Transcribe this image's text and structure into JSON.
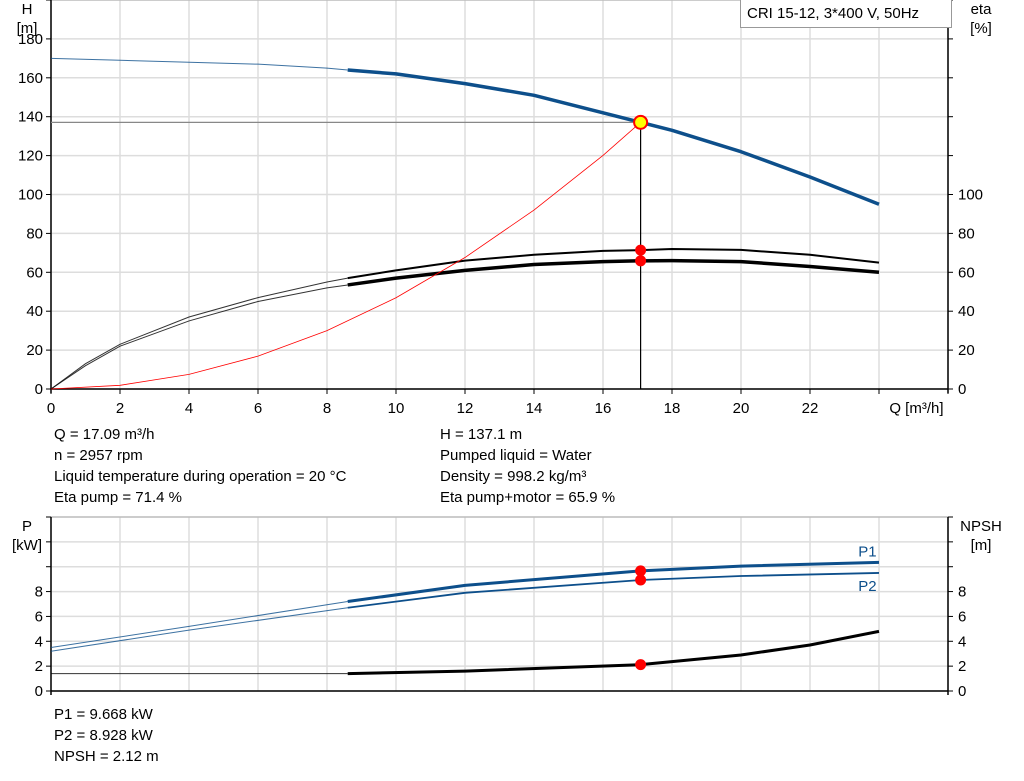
{
  "legend_box": "CRI 15-12, 3*400 V, 50Hz",
  "info_top_left": [
    "Q = 17.09 m³/h",
    "n = 2957 rpm",
    "Liquid temperature during operation = 20 °C",
    "Eta pump = 71.4 %"
  ],
  "info_top_right": [
    "H = 137.1 m",
    "Pumped liquid = Water",
    "Density = 998.2 kg/m³",
    "Eta pump+motor = 65.9 %"
  ],
  "info_bottom": [
    "P1 = 9.668 kW",
    "P2 = 8.928 kW",
    "NPSH = 2.12 m"
  ],
  "colors": {
    "blue": "#0d4f8b",
    "black": "#000000",
    "red": "#ff0000",
    "operating_point": "#ffff00"
  },
  "chart_data": [
    {
      "type": "line",
      "xlabel": "Q [m³/h]",
      "ylabel": "H\n[m]",
      "y2label": "eta\n[%]",
      "ylabel_lines": [
        "H",
        "[m]"
      ],
      "y2label_lines": [
        "eta",
        "[%]"
      ],
      "xlim": [
        0,
        26
      ],
      "ylim": [
        0,
        200
      ],
      "grid": true,
      "xticks": [
        0,
        2,
        4,
        6,
        8,
        10,
        12,
        14,
        16,
        18,
        20,
        22
      ],
      "yticks": [
        0,
        20,
        40,
        60,
        80,
        100,
        120,
        140,
        160,
        180
      ],
      "y2ticks": [
        0,
        20,
        40,
        60,
        80,
        100
      ],
      "duty_point": {
        "Q": 17.09,
        "H": 137.1,
        "eta_pump": 71.4,
        "eta_pump_motor": 65.9
      },
      "series": [
        {
          "id": "H",
          "color": "#0d4f8b",
          "x": [
            0,
            2,
            4,
            6,
            8,
            8.6,
            10,
            12,
            14,
            16,
            17.09,
            18,
            20,
            22,
            24
          ],
          "y": [
            170,
            169,
            168,
            167,
            165,
            164,
            162,
            157,
            151,
            142,
            137.1,
            133,
            122,
            109,
            95
          ],
          "thick_from": 8.6
        },
        {
          "id": "eta_pump",
          "color": "#000000",
          "x": [
            0,
            1,
            2,
            4,
            6,
            8,
            8.6,
            10,
            12,
            14,
            16,
            17.09,
            18,
            20,
            22,
            24
          ],
          "y": [
            0,
            13,
            23,
            37,
            47,
            55,
            57,
            61,
            66,
            69,
            71,
            71.4,
            72,
            71.5,
            69,
            65
          ],
          "thick_from": 8.6,
          "width": 2
        },
        {
          "id": "eta_pump_motor",
          "color": "#000000",
          "x": [
            0,
            1,
            2,
            4,
            6,
            8,
            8.6,
            10,
            12,
            14,
            16,
            17.09,
            18,
            20,
            22,
            24
          ],
          "y": [
            0,
            12,
            22,
            35,
            45,
            52,
            53.5,
            57,
            61,
            64,
            65.5,
            65.9,
            66,
            65.5,
            63,
            60
          ],
          "thick_from": 8.6,
          "width": 3.5
        },
        {
          "id": "system",
          "color": "#ff0000",
          "x": [
            0,
            2,
            4,
            6,
            8,
            10,
            12,
            14,
            16,
            17.09
          ],
          "y": [
            0,
            1.9,
            7.5,
            16.9,
            30,
            46.9,
            67.6,
            92,
            120.1,
            137.1
          ],
          "width": 0.8
        }
      ]
    },
    {
      "type": "line",
      "ylabel_lines": [
        "P",
        "[kW]"
      ],
      "y2label_lines": [
        "NPSH",
        "[m]"
      ],
      "xlim": [
        0,
        26
      ],
      "ylim": [
        0,
        14
      ],
      "grid": true,
      "yticks": [
        0,
        2,
        4,
        6,
        8
      ],
      "y2ticks": [
        0,
        2,
        4,
        6,
        8
      ],
      "series": [
        {
          "name": "P1",
          "color": "#0d4f8b",
          "x": [
            0,
            4,
            8.6,
            12,
            17.09,
            20,
            24
          ],
          "y": [
            3.5,
            5.2,
            7.2,
            8.5,
            9.668,
            10.05,
            10.35
          ],
          "thick_from": 8.6,
          "width": 3
        },
        {
          "name": "P2",
          "color": "#0d4f8b",
          "x": [
            0,
            4,
            8.6,
            12,
            17.09,
            20,
            24
          ],
          "y": [
            3.2,
            4.9,
            6.7,
            7.9,
            8.928,
            9.25,
            9.5
          ],
          "thick_from": 8.6,
          "width": 1.8
        },
        {
          "id": "NPSH",
          "color": "#000000",
          "x": [
            0,
            8.6,
            12,
            17.09,
            20,
            22,
            24
          ],
          "y": [
            1.4,
            1.4,
            1.6,
            2.12,
            2.9,
            3.7,
            4.8
          ],
          "thick_from": 8.6,
          "width": 3
        }
      ]
    }
  ]
}
